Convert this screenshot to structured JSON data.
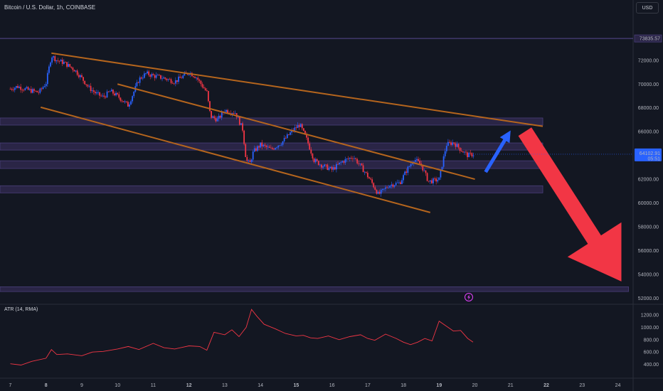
{
  "header": {
    "symbol_title": "Bitcoin / U.S. Dollar, 1h, COINBASE",
    "currency_button": "USD"
  },
  "indicator": {
    "title": "ATR (14, RMA)"
  },
  "colors": {
    "background": "#131722",
    "bull_candle": "#2962ff",
    "bear_candle": "#f23645",
    "channel_line": "#b5651d",
    "zone_fill": "#2a2546",
    "zone_border": "#4a3f7a",
    "atr_line": "#f23645",
    "up_arrow": "#2962ff",
    "down_arrow": "#f23645",
    "price_tag_bg": "#2962ff"
  },
  "icons": {
    "alert": "lightning-alert-icon"
  },
  "chart_data": [
    {
      "type": "candlestick",
      "title": "Bitcoin / U.S. Dollar, 1h, COINBASE",
      "x_labels": [
        "7",
        "8",
        "9",
        "10",
        "11",
        "12",
        "13",
        "14",
        "15",
        "16",
        "17",
        "18",
        "19",
        "20",
        "21",
        "22",
        "23",
        "24"
      ],
      "bold_x_labels": [
        "8",
        "12",
        "15",
        "19",
        "22"
      ],
      "y_ticks": [
        52000,
        54000,
        56000,
        58000,
        60000,
        62000,
        64000,
        66000,
        68000,
        70000,
        72000
      ],
      "y_tick_labels": [
        "52000.00",
        "54000.00",
        "56000.00",
        "58000.00",
        "60000.00",
        "62000.00",
        "64000.00",
        "66000.00",
        "68000.00",
        "70000.00",
        "72000.00"
      ],
      "ylim": [
        51600,
        74800
      ],
      "xlim": [
        7,
        24.5
      ],
      "price_marker_high": {
        "value": 73835.57,
        "label": "73835.57"
      },
      "current_price": {
        "value": 64102.91,
        "label": "64102.91",
        "countdown": "05:51"
      },
      "close_series": {
        "x": [
          7.0,
          7.2,
          7.5,
          7.8,
          8.0,
          8.15,
          8.3,
          8.5,
          8.8,
          9.0,
          9.2,
          9.4,
          9.6,
          9.8,
          10.0,
          10.3,
          10.6,
          10.8,
          11.0,
          11.3,
          11.6,
          11.9,
          12.0,
          12.2,
          12.5,
          12.6,
          12.8,
          13.0,
          13.3,
          13.5,
          13.6,
          13.7,
          13.8,
          14.0,
          14.3,
          14.6,
          14.9,
          15.1,
          15.3,
          15.5,
          15.7,
          16.0,
          16.3,
          16.6,
          16.9,
          17.1,
          17.3,
          17.6,
          17.9,
          18.1,
          18.3,
          18.5,
          18.7,
          18.9,
          19.0,
          19.2,
          19.4,
          19.6,
          19.8,
          19.95
        ],
        "close": [
          69600,
          69800,
          69500,
          69300,
          70100,
          72400,
          72000,
          71800,
          71200,
          70500,
          69700,
          69200,
          68900,
          69400,
          69000,
          68200,
          70400,
          70900,
          70700,
          70500,
          70200,
          70800,
          71000,
          70600,
          69300,
          67300,
          67000,
          67800,
          67600,
          66200,
          63600,
          63300,
          64300,
          64900,
          64500,
          65100,
          66100,
          66600,
          65300,
          63600,
          63200,
          62800,
          63500,
          63900,
          62700,
          61800,
          60700,
          61500,
          61700,
          62800,
          63700,
          63200,
          61800,
          61900,
          62000,
          64900,
          65100,
          64500,
          64000,
          64102.91
        ]
      },
      "annotations": {
        "upper_trendline": [
          {
            "x": 8.15,
            "y": 72600
          },
          {
            "x": 21.9,
            "y": 66450
          }
        ],
        "inner_trendline": [
          {
            "x": 10.0,
            "y": 70000
          },
          {
            "x": 20.0,
            "y": 62000
          }
        ],
        "lower_trendline": [
          {
            "x": 7.85,
            "y": 68050
          },
          {
            "x": 18.75,
            "y": 59200
          }
        ],
        "horizontal_zones": [
          {
            "from": 66550,
            "to": 67150,
            "x_end": 21.9
          },
          {
            "from": 64450,
            "to": 65050,
            "x_end": 21.9
          },
          {
            "from": 62900,
            "to": 63550,
            "x_end": 21.9
          },
          {
            "from": 60850,
            "to": 61450,
            "x_end": 21.9
          },
          {
            "from": 52550,
            "to": 52950,
            "x_end": 24.3
          }
        ],
        "high_line": 73835.57,
        "up_arrow": {
          "from": {
            "x": 20.3,
            "y": 62600
          },
          "to": {
            "x": 21.0,
            "y": 66100
          }
        },
        "down_arrow": {
          "from": {
            "x": 21.4,
            "y": 66000
          },
          "to": {
            "x": 24.1,
            "y": 53400
          }
        }
      }
    },
    {
      "type": "line",
      "title": "ATR (14, RMA)",
      "y_ticks": [
        400,
        600,
        800,
        1000,
        1200
      ],
      "y_tick_labels": [
        "400.00",
        "600.00",
        "800.00",
        "1000.00",
        "1200.00"
      ],
      "ylim": [
        200,
        1350
      ],
      "series": [
        {
          "x": [
            7.0,
            7.3,
            7.6,
            8.0,
            8.15,
            8.3,
            8.6,
            9.0,
            9.3,
            9.6,
            10.0,
            10.3,
            10.6,
            11.0,
            11.3,
            11.6,
            12.0,
            12.3,
            12.5,
            12.7,
            13.0,
            13.2,
            13.4,
            13.6,
            13.75,
            13.9,
            14.1,
            14.4,
            14.7,
            15.0,
            15.2,
            15.4,
            15.6,
            15.9,
            16.2,
            16.5,
            16.8,
            17.0,
            17.2,
            17.5,
            17.8,
            18.0,
            18.2,
            18.4,
            18.6,
            18.8,
            19.0,
            19.2,
            19.4,
            19.6,
            19.8,
            19.95
          ],
          "values": [
            410,
            390,
            450,
            500,
            640,
            560,
            570,
            540,
            600,
            610,
            650,
            690,
            640,
            740,
            670,
            650,
            700,
            690,
            630,
            920,
            880,
            960,
            850,
            1000,
            1290,
            1180,
            1050,
            980,
            900,
            860,
            870,
            830,
            820,
            860,
            800,
            850,
            880,
            820,
            790,
            890,
            820,
            760,
            720,
            760,
            820,
            780,
            1100,
            1020,
            940,
            950,
            820,
            760
          ]
        }
      ]
    }
  ]
}
